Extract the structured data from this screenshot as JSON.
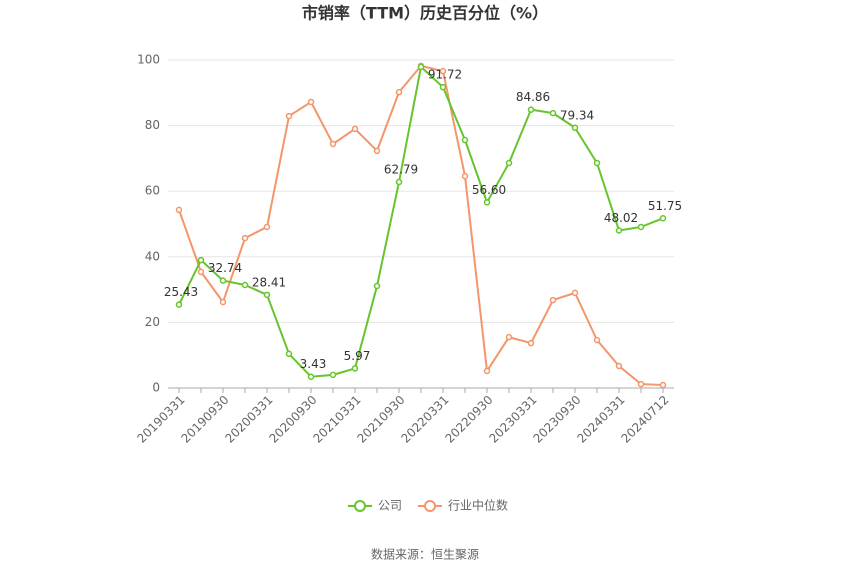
{
  "chart_data": {
    "type": "line",
    "title": "市销率（TTM）历史百分位（%）",
    "categories": [
      "20190331",
      null,
      "20190930",
      null,
      "20200331",
      null,
      "20200930",
      null,
      "20210331",
      null,
      "20210930",
      null,
      "20220331",
      null,
      "20220930",
      null,
      "20230331",
      null,
      "20230930",
      null,
      "20240331",
      null,
      "20240712"
    ],
    "series": [
      {
        "name": "公司",
        "color": "#66c42c",
        "values": [
          25.43,
          39.0,
          32.74,
          31.4,
          28.41,
          10.4,
          3.43,
          4.0,
          5.97,
          31.1,
          62.79,
          97.9,
          91.72,
          75.6,
          56.6,
          68.6,
          84.86,
          83.8,
          79.34,
          68.6,
          48.02,
          49.1,
          51.75
        ],
        "value_labels": [
          "25.43",
          null,
          "32.74",
          null,
          "28.41",
          null,
          "3.43",
          null,
          "5.97",
          null,
          "62.79",
          null,
          "91.72",
          null,
          "56.60",
          null,
          "84.86",
          null,
          "79.34",
          null,
          "48.02",
          null,
          "51.75"
        ]
      },
      {
        "name": "行业中位数",
        "color": "#f4956a",
        "values": [
          54.3,
          35.4,
          26.2,
          45.7,
          49.1,
          82.9,
          87.2,
          74.4,
          79.0,
          72.3,
          90.2,
          98.2,
          96.6,
          64.6,
          5.2,
          15.5,
          13.7,
          26.8,
          29.0,
          14.6,
          6.7,
          1.2,
          0.9
        ]
      }
    ],
    "ylim": [
      0,
      100
    ],
    "yticks": [
      0,
      20,
      40,
      60,
      80,
      100
    ],
    "grid": true,
    "legend": "bottom",
    "source": "数据来源：恒生聚源"
  }
}
